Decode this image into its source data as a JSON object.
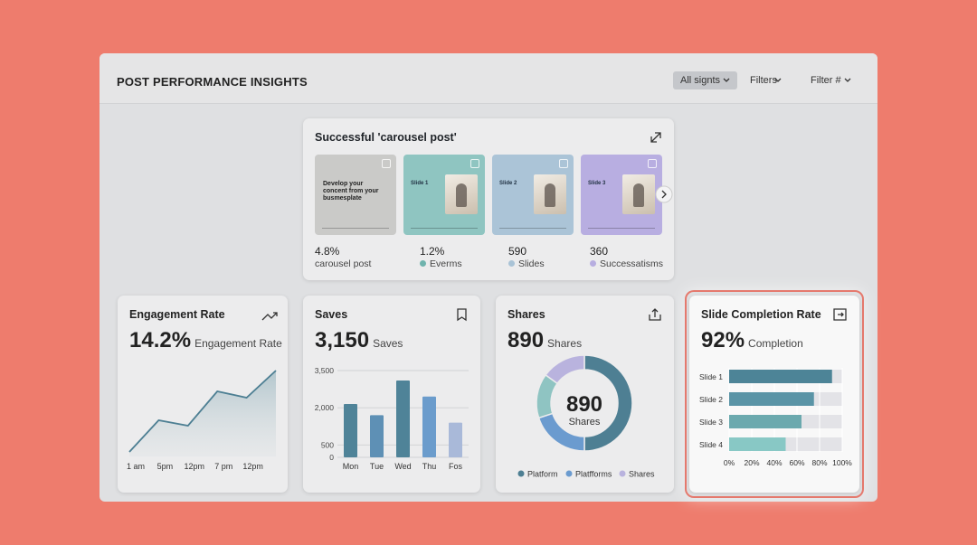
{
  "header": {
    "title": "POST PERFORMANCE INSIGHTS",
    "buttons": [
      "All signts",
      "Filters",
      "Filter #"
    ]
  },
  "carousel": {
    "title": "Successful 'carousel post'",
    "slides": [
      {
        "text": "Develop your concent from your busmesplate",
        "color": "#cacac8"
      },
      {
        "label": "Slide 1",
        "color": "#8fc5c1"
      },
      {
        "label": "Slide 2",
        "color": "#abc4d7"
      },
      {
        "label": "Slide 3",
        "color": "#b8aee1"
      }
    ],
    "stats": [
      {
        "value": "4.8%",
        "label": "carousel post"
      },
      {
        "value": "1.2%",
        "label": "Everms",
        "color": "#6fb3ad"
      },
      {
        "value": "590",
        "label": "Slides",
        "color": "#a9c3d6"
      },
      {
        "value": "360",
        "label": "Successatisms",
        "color": "#b7aee0"
      }
    ]
  },
  "cards": [
    {
      "title": "Engagement Rate",
      "value": "14.2%",
      "unit": "Engagement Rate",
      "chart": {
        "type": "line",
        "categories": [
          "1 am",
          "5pm",
          "12pm",
          "7 pm",
          "12pm",
          null
        ],
        "values": [
          5,
          40,
          34,
          72,
          65,
          95
        ],
        "ylim": [
          0,
          100
        ],
        "color": "#4d7f93"
      }
    },
    {
      "title": "Saves",
      "value": "3,150",
      "unit": "Saves",
      "chart": {
        "type": "bar",
        "categories": [
          "Mon",
          "Tue",
          "Wed",
          "Thu",
          "Fos"
        ],
        "values": [
          2150,
          1700,
          3100,
          2450,
          1400
        ],
        "colors": [
          "#4f8398",
          "#5e90b5",
          "#4f8398",
          "#6b9ccc",
          "#a9b9d9"
        ],
        "ylim": [
          0,
          3500
        ],
        "yticks": [
          0,
          500,
          {
            "value": 2000,
            "label": "2,000"
          },
          {
            "value": 3500,
            "label": "3,500"
          }
        ],
        "grid": true
      }
    },
    {
      "title": "Shares",
      "value": "890",
      "unit": "Shares",
      "chart": {
        "type": "donut",
        "center_value": "890",
        "center_label": "Shares",
        "slices": [
          {
            "name": "Platform",
            "color": "#4e7f93",
            "value": 50
          },
          {
            "name": "Platfforms",
            "color": "#6b9bcf",
            "value": 20
          },
          {
            "name": null,
            "color": "#8fc4c2",
            "value": 15
          },
          {
            "name": "Shares",
            "color": "#b9b3de",
            "value": 15
          }
        ]
      }
    },
    {
      "title": "Slide Completion Rate",
      "value": "92%",
      "unit": "Completion",
      "highlight": true,
      "chart": {
        "type": "hbar",
        "categories": [
          "Slide 1",
          "Slide 2",
          "Slide 3",
          "Slide 4"
        ],
        "values": [
          91,
          75,
          64,
          50
        ],
        "colors": [
          "#4d8497",
          "#5a94a6",
          "#6ba9ae",
          "#88c8c5"
        ],
        "track_color": "#e3e3e7",
        "xlim": [
          0,
          100
        ],
        "xticks": [
          {
            "value": 0,
            "label": "0%"
          },
          {
            "value": 20,
            "label": "20%"
          },
          {
            "value": 40,
            "label": "40%"
          },
          {
            "value": 60,
            "label": "60%"
          },
          {
            "value": 80,
            "label": "80%"
          },
          {
            "value": 100,
            "label": "100%"
          }
        ],
        "grid": true
      }
    }
  ]
}
